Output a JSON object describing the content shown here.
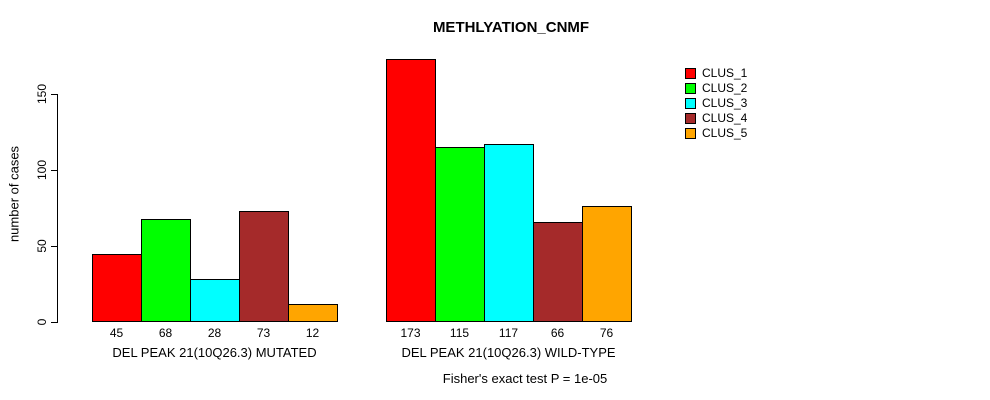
{
  "title": "METHLYATION_CNMF",
  "caption": "Fisher's exact test P = 1e-05",
  "chart_data": {
    "type": "bar",
    "title": "METHLYATION_CNMF",
    "xlabel": "",
    "ylabel": "number of cases",
    "ylim": [
      0,
      150
    ],
    "yticks": [
      0,
      50,
      100,
      150
    ],
    "grid": false,
    "legend_position": "top-right",
    "series": [
      {
        "name": "CLUS_1",
        "color": "#FF0000"
      },
      {
        "name": "CLUS_2",
        "color": "#00FF00"
      },
      {
        "name": "CLUS_3",
        "color": "#00FFFF"
      },
      {
        "name": "CLUS_4",
        "color": "#A52A2A"
      },
      {
        "name": "CLUS_5",
        "color": "#FFA500"
      }
    ],
    "groups": [
      {
        "label": "DEL PEAK 21(10Q26.3) MUTATED",
        "values": [
          45,
          68,
          28,
          73,
          12
        ]
      },
      {
        "label": "DEL PEAK 21(10Q26.3) WILD-TYPE",
        "values": [
          173,
          115,
          117,
          66,
          76
        ]
      }
    ],
    "annotation": "Fisher's exact test P = 1e-05"
  }
}
